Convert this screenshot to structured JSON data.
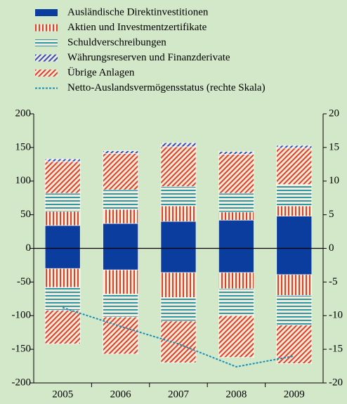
{
  "chart_data": {
    "type": "bar",
    "categories": [
      "2005",
      "2006",
      "2007",
      "2008",
      "2009"
    ],
    "series": [
      {
        "name": "Ausländische Direktinvestitionen",
        "color": "#0a3d9e",
        "pattern": "solid",
        "values": [
          34,
          37,
          40,
          42,
          48
        ],
        "liabilities": [
          -30,
          -32,
          -36,
          -36,
          -39
        ]
      },
      {
        "name": "Aktien und Investmentzertifikate",
        "color": "#e0402a",
        "pattern": "vertical",
        "values": [
          21,
          21,
          23,
          12,
          15
        ],
        "liabilities": [
          -28,
          -36,
          -37,
          -24,
          -31
        ]
      },
      {
        "name": "Schuldverschreibungen",
        "color": "#2a9aa8",
        "pattern": "horizontal",
        "values": [
          27,
          29,
          29,
          28,
          32
        ],
        "liabilities": [
          -34,
          -34,
          -35,
          -40,
          -44
        ]
      },
      {
        "name": "Übrige Anlagen",
        "color": "#e0402a",
        "pattern": "diagonal",
        "values": [
          47,
          54,
          59,
          58,
          54
        ],
        "liabilities": [
          -50,
          -55,
          -62,
          -62,
          -57
        ]
      },
      {
        "name": "Währungsreserven und Finanzderivate",
        "color": "#2a4fc0",
        "pattern": "diagonal",
        "values": [
          4,
          4,
          6,
          4,
          4
        ]
      },
      {
        "name": "Netto-Auslandsvermögensstatus (rechte Skala)",
        "color": "#1a8fb5",
        "axis": "y2",
        "values": [
          -8.8,
          -11.6,
          -14.2,
          -17.6,
          -16.0
        ]
      }
    ],
    "legend_order": [
      0,
      1,
      2,
      4,
      3,
      5
    ],
    "ylim": [
      -200,
      200
    ],
    "yticks": [
      -200,
      -150,
      -100,
      -50,
      0,
      50,
      100,
      150,
      200
    ],
    "y2lim": [
      -20,
      20
    ],
    "y2ticks": [
      -20,
      -15,
      -10,
      -5,
      0,
      5,
      10,
      15,
      20
    ],
    "grid": false
  }
}
